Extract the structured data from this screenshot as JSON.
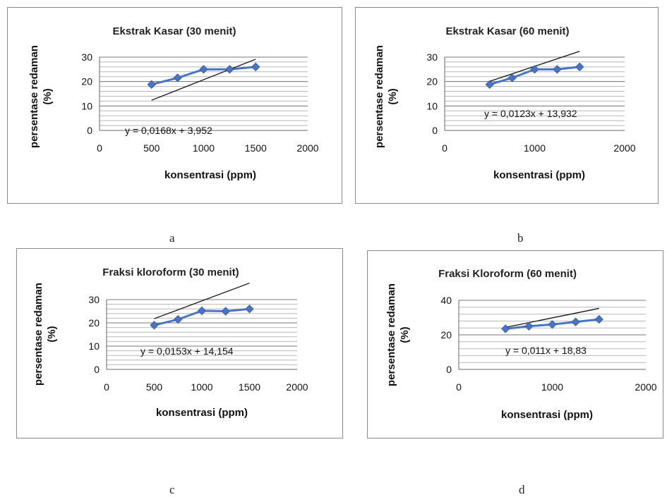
{
  "chart_data": [
    {
      "type": "scatter",
      "title": "Ekstrak Kasar (30 menit)",
      "xlabel": "konsentrasi (ppm)",
      "ylabel": [
        "persentase redaman",
        "(%)"
      ],
      "xlim": [
        0,
        2000
      ],
      "xticks": [
        0,
        500,
        1000,
        1500,
        2000
      ],
      "ylim": [
        0,
        30
      ],
      "yticks": [
        0,
        10,
        20,
        30
      ],
      "series": [
        {
          "x": [
            500,
            750,
            1000,
            1250,
            1500
          ],
          "y": [
            18.8,
            21.5,
            25.0,
            25.0,
            26.0
          ],
          "color": "#4a74c4"
        }
      ],
      "trendline": {
        "slope": 0.0168,
        "intercept": 3.952,
        "x_range": [
          500,
          1500
        ],
        "label": "y = 0,0168x + 3,952"
      },
      "caption": "a"
    },
    {
      "type": "scatter",
      "title": "Ekstrak Kasar (60 menit)",
      "xlabel": "konsentrasi (ppm)",
      "ylabel": [
        "persentase redaman",
        "(%)"
      ],
      "xlim": [
        0,
        2000
      ],
      "xticks": [
        0,
        1000,
        2000
      ],
      "ylim": [
        0,
        30
      ],
      "yticks": [
        0,
        10,
        20,
        30
      ],
      "series": [
        {
          "x": [
            500,
            750,
            1000,
            1250,
            1500
          ],
          "y": [
            18.8,
            21.5,
            25.0,
            25.0,
            26.0
          ],
          "color": "#4a74c4"
        }
      ],
      "trendline": {
        "slope": 0.0123,
        "intercept": 13.932,
        "x_range": [
          500,
          1500
        ],
        "label": "y = 0,0123x + 13,932"
      },
      "caption": "b"
    },
    {
      "type": "scatter",
      "title": "Fraksi kloroform (30 menit)",
      "xlabel": "konsentrasi (ppm)",
      "ylabel": [
        "persentase redaman",
        "(%)"
      ],
      "xlim": [
        0,
        2000
      ],
      "xticks": [
        0,
        500,
        1000,
        1500,
        2000
      ],
      "ylim": [
        0,
        30
      ],
      "yticks": [
        0,
        10,
        20,
        30
      ],
      "series": [
        {
          "x": [
            500,
            750,
            1000,
            1250,
            1500
          ],
          "y": [
            19.0,
            21.5,
            25.2,
            25.0,
            26.0
          ],
          "color": "#4a74c4"
        }
      ],
      "trendline": {
        "slope": 0.0153,
        "intercept": 14.154,
        "x_range": [
          500,
          1500
        ],
        "label": "y = 0,0153x + 14,154"
      },
      "caption": "c"
    },
    {
      "type": "scatter",
      "title": "Fraksi Kloroform (60 menit)",
      "xlabel": "konsentrasi (ppm)",
      "ylabel": [
        "persentase redaman",
        "(%)"
      ],
      "xlim": [
        0,
        2000
      ],
      "xticks": [
        0,
        1000,
        2000
      ],
      "ylim": [
        0,
        40
      ],
      "yticks": [
        0,
        20,
        40
      ],
      "series": [
        {
          "x": [
            500,
            750,
            1000,
            1250,
            1500
          ],
          "y": [
            23.5,
            25.0,
            26.0,
            27.5,
            29.0
          ],
          "color": "#4a74c4"
        }
      ],
      "trendline": {
        "slope": 0.011,
        "intercept": 18.83,
        "x_range": [
          500,
          1500
        ],
        "label": "y = 0,011x + 18,83"
      },
      "caption": "d"
    }
  ]
}
